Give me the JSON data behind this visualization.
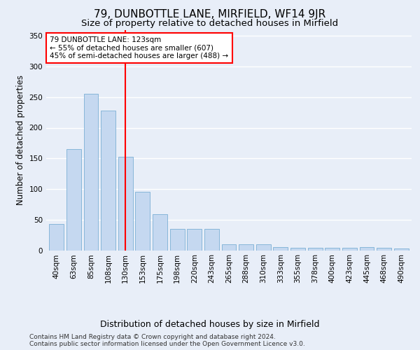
{
  "title": "79, DUNBOTTLE LANE, MIRFIELD, WF14 9JR",
  "subtitle": "Size of property relative to detached houses in Mirfield",
  "xlabel": "Distribution of detached houses by size in Mirfield",
  "ylabel": "Number of detached properties",
  "categories": [
    "40sqm",
    "63sqm",
    "85sqm",
    "108sqm",
    "130sqm",
    "153sqm",
    "175sqm",
    "198sqm",
    "220sqm",
    "243sqm",
    "265sqm",
    "288sqm",
    "310sqm",
    "333sqm",
    "355sqm",
    "378sqm",
    "400sqm",
    "423sqm",
    "445sqm",
    "468sqm",
    "490sqm"
  ],
  "values": [
    43,
    165,
    255,
    228,
    153,
    95,
    59,
    35,
    35,
    35,
    10,
    10,
    10,
    5,
    4,
    4,
    4,
    4,
    5,
    4,
    3
  ],
  "bar_color": "#c5d8f0",
  "bar_edge_color": "#7bafd4",
  "background_color": "#e8eef8",
  "vline_x_index": 4,
  "vline_color": "red",
  "annotation_text": "79 DUNBOTTLE LANE: 123sqm\n← 55% of detached houses are smaller (607)\n45% of semi-detached houses are larger (488) →",
  "annotation_box_color": "white",
  "annotation_box_edge_color": "red",
  "ylim": [
    0,
    360
  ],
  "yticks": [
    0,
    50,
    100,
    150,
    200,
    250,
    300,
    350
  ],
  "footer1": "Contains HM Land Registry data © Crown copyright and database right 2024.",
  "footer2": "Contains public sector information licensed under the Open Government Licence v3.0.",
  "title_fontsize": 11,
  "subtitle_fontsize": 9.5,
  "xlabel_fontsize": 9,
  "ylabel_fontsize": 8.5,
  "tick_fontsize": 7.5,
  "footer_fontsize": 6.5
}
